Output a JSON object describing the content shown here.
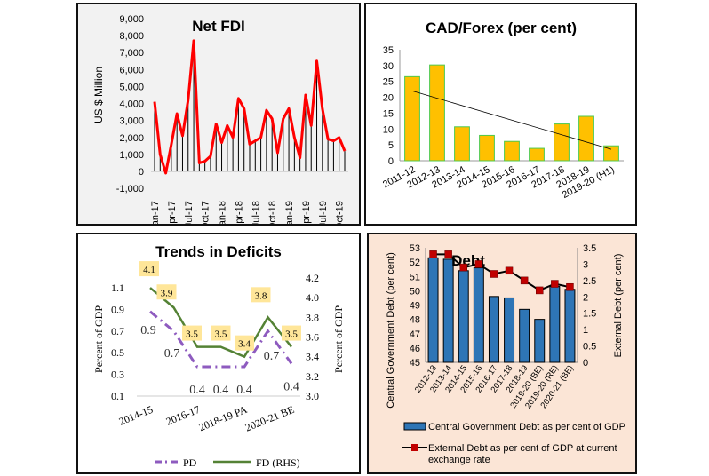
{
  "chart_data": [
    {
      "type": "line",
      "title": "Net FDI",
      "ylabel": "US $ Million",
      "xlabel": "",
      "ylim": [
        -1000,
        9000
      ],
      "yticks": [
        "-1,000",
        "0",
        "1,000",
        "2,000",
        "3,000",
        "4,000",
        "5,000",
        "6,000",
        "7,000",
        "8,000",
        "9,000"
      ],
      "x_tick_labels": [
        "Jan-17",
        "Apr-17",
        "Jul-17",
        "Oct-17",
        "Jan-18",
        "Apr-18",
        "Jul-18",
        "Oct-18",
        "Jan-19",
        "Apr-19",
        "Jul-19",
        "Oct-19"
      ],
      "x": [
        "Jan-17",
        "Feb-17",
        "Mar-17",
        "Apr-17",
        "May-17",
        "Jun-17",
        "Jul-17",
        "Aug-17",
        "Sep-17",
        "Oct-17",
        "Nov-17",
        "Dec-17",
        "Jan-18",
        "Feb-18",
        "Mar-18",
        "Apr-18",
        "May-18",
        "Jun-18",
        "Jul-18",
        "Aug-18",
        "Sep-18",
        "Oct-18",
        "Nov-18",
        "Dec-18",
        "Jan-19",
        "Feb-19",
        "Mar-19",
        "Apr-19",
        "May-19",
        "Jun-19",
        "Jul-19",
        "Aug-19",
        "Sep-19",
        "Oct-19",
        "Nov-19"
      ],
      "values": [
        4100,
        1000,
        -100,
        1600,
        3400,
        2100,
        4200,
        7700,
        500,
        600,
        900,
        2800,
        1700,
        2700,
        2000,
        4300,
        3700,
        1600,
        1800,
        2000,
        3600,
        3100,
        1100,
        3100,
        3700,
        2000,
        800,
        4500,
        2700,
        6500,
        3700,
        1900,
        1800,
        2000,
        1200
      ],
      "line_color": "#ff0000",
      "drop_lines": true
    },
    {
      "type": "bar",
      "title": "CAD/Forex (per cent)",
      "xlabel": "",
      "ylabel": "",
      "ylim": [
        0,
        35
      ],
      "yticks": [
        "0",
        "5",
        "10",
        "15",
        "20",
        "25",
        "30",
        "35"
      ],
      "categories": [
        "2011-12",
        "2012-13",
        "2013-14",
        "2014-15",
        "2015-16",
        "2016-17",
        "2017-18",
        "2018-19",
        "2019-20 (H1)"
      ],
      "values": [
        26.5,
        30.2,
        10.7,
        8.0,
        6.1,
        3.9,
        11.6,
        14.0,
        4.7
      ],
      "trendline": [
        22.0,
        3.6
      ],
      "bar_color": "#ffc000",
      "bar_edge": "#4ec94e"
    },
    {
      "type": "line",
      "title": "Trends in Deficits",
      "ylabel": "Percent of GDP",
      "ylabel_right": "Percent of GDP",
      "ylim": [
        0.1,
        1.2
      ],
      "ylim_right": [
        3.0,
        4.2
      ],
      "yticks": [
        "0.1",
        "0.3",
        "0.5",
        "0.7",
        "0.9",
        "1.1"
      ],
      "yticks_right": [
        "3.0",
        "3.2",
        "3.4",
        "3.6",
        "3.8",
        "4.0",
        "4.2"
      ],
      "x_tick_labels": [
        "2014-15",
        "2016-17",
        "2018-19 PA",
        "2020-21 BE"
      ],
      "categories": [
        "2014-15",
        "2015-16",
        "2016-17",
        "2017-18",
        "2018-19 PA",
        "2019-20",
        "2020-21 BE"
      ],
      "series": [
        {
          "name": "PD",
          "axis": "left",
          "values": [
            0.88,
            0.7,
            0.37,
            0.37,
            0.37,
            0.7,
            0.4
          ],
          "labels": [
            "0.9",
            "0.7",
            "0.4",
            "0.4",
            "0.4",
            "0.7",
            "0.4"
          ],
          "color": "#8e5bbf",
          "style": "dash-dot"
        },
        {
          "name": "FD (RHS)",
          "axis": "right",
          "values": [
            4.1,
            3.9,
            3.5,
            3.5,
            3.4,
            3.8,
            3.5
          ],
          "labels": [
            "4.1",
            "3.9",
            "3.5",
            "3.5",
            "3.4",
            "3.8",
            "3.5"
          ],
          "color": "#548235",
          "style": "solid"
        }
      ],
      "legend": "bottom"
    },
    {
      "type": "bar",
      "title": "Debt",
      "ylabel": "Central Government Debt (per cent)",
      "ylabel_right": "External Debt (per cent)",
      "ylim": [
        45,
        53
      ],
      "ylim_right": [
        0,
        3.5
      ],
      "yticks": [
        "45",
        "46",
        "47",
        "48",
        "49",
        "50",
        "51",
        "52",
        "53"
      ],
      "yticks_right": [
        "0",
        "0.5",
        "1",
        "1.5",
        "2",
        "2.5",
        "3",
        "3.5"
      ],
      "categories": [
        "2012-13",
        "2013-14",
        "2014-15",
        "2015-16",
        "2016-17",
        "2017-18",
        "2018-19",
        "2019-20 (BE)",
        "2019-20 (RE)",
        "2020-21 (BE)"
      ],
      "series": [
        {
          "name": "Central Government Debt as per cent of GDP",
          "type": "bar",
          "axis": "left",
          "values": [
            52.3,
            52.2,
            51.4,
            51.6,
            49.6,
            49.5,
            48.7,
            48.0,
            50.3,
            50.1
          ],
          "color": "#2e75b6"
        },
        {
          "name": "External Debt as per cent of GDP at current exchange rate",
          "name_line2": "exchange rate",
          "name_line1": "External Debt as per cent of GDP at current",
          "type": "line",
          "axis": "right",
          "values": [
            3.3,
            3.3,
            2.9,
            3.0,
            2.7,
            2.8,
            2.5,
            2.2,
            2.4,
            2.3
          ],
          "color": "#c00000"
        }
      ],
      "legend": "bottom"
    }
  ]
}
